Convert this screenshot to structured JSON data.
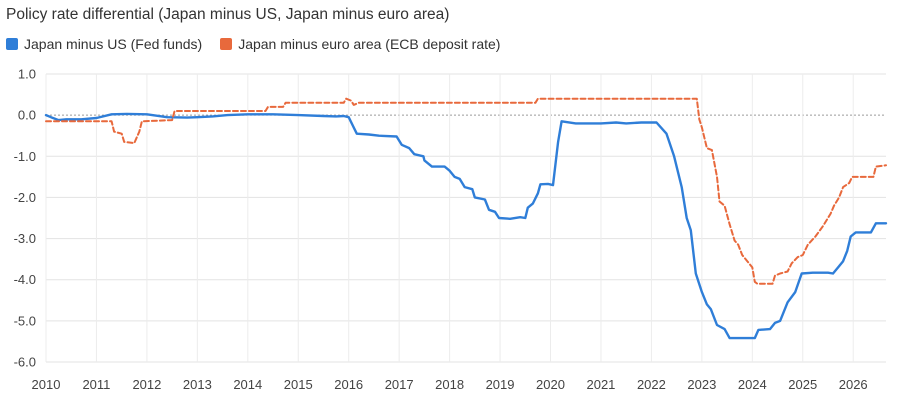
{
  "chart_data": {
    "type": "line",
    "title": "Policy rate differential (Japan minus US, Japan minus euro area)",
    "xlabel": "",
    "ylabel": "",
    "xlim": [
      2010,
      2026.65
    ],
    "ylim": [
      -6,
      1
    ],
    "x_ticks": [
      "2010",
      "2011",
      "2012",
      "2013",
      "2014",
      "2015",
      "2016",
      "2017",
      "2018",
      "2019",
      "2020",
      "2021",
      "2022",
      "2023",
      "2024",
      "2025",
      "2026"
    ],
    "y_ticks": [
      "1.0",
      "0.0",
      "-1.0",
      "-2.0",
      "-3.0",
      "-4.0",
      "-5.0",
      "-6.0"
    ],
    "grid": true,
    "legend_position": "top-left",
    "series": [
      {
        "name": "Japan minus US (Fed funds)",
        "color": "#2f7ed8",
        "style": "solid",
        "points": [
          [
            2010.0,
            0.0
          ],
          [
            2010.1,
            -0.05
          ],
          [
            2010.25,
            -0.12
          ],
          [
            2010.4,
            -0.1
          ],
          [
            2010.7,
            -0.1
          ],
          [
            2011.0,
            -0.07
          ],
          [
            2011.3,
            0.02
          ],
          [
            2011.6,
            0.03
          ],
          [
            2012.0,
            0.02
          ],
          [
            2012.4,
            -0.05
          ],
          [
            2012.8,
            -0.06
          ],
          [
            2013.0,
            -0.05
          ],
          [
            2013.3,
            -0.03
          ],
          [
            2013.6,
            0.0
          ],
          [
            2014.0,
            0.02
          ],
          [
            2014.5,
            0.02
          ],
          [
            2015.0,
            0.0
          ],
          [
            2015.5,
            -0.02
          ],
          [
            2015.75,
            -0.03
          ],
          [
            2015.9,
            -0.02
          ],
          [
            2016.0,
            -0.05
          ],
          [
            2016.08,
            -0.25
          ],
          [
            2016.16,
            -0.45
          ],
          [
            2016.4,
            -0.47
          ],
          [
            2016.6,
            -0.5
          ],
          [
            2016.95,
            -0.52
          ],
          [
            2017.05,
            -0.72
          ],
          [
            2017.2,
            -0.8
          ],
          [
            2017.3,
            -0.95
          ],
          [
            2017.48,
            -1.0
          ],
          [
            2017.5,
            -1.1
          ],
          [
            2017.65,
            -1.25
          ],
          [
            2017.9,
            -1.25
          ],
          [
            2018.0,
            -1.35
          ],
          [
            2018.1,
            -1.5
          ],
          [
            2018.2,
            -1.55
          ],
          [
            2018.3,
            -1.75
          ],
          [
            2018.45,
            -1.8
          ],
          [
            2018.5,
            -2.0
          ],
          [
            2018.7,
            -2.05
          ],
          [
            2018.78,
            -2.3
          ],
          [
            2018.9,
            -2.35
          ],
          [
            2018.98,
            -2.5
          ],
          [
            2019.2,
            -2.52
          ],
          [
            2019.4,
            -2.48
          ],
          [
            2019.5,
            -2.5
          ],
          [
            2019.55,
            -2.25
          ],
          [
            2019.65,
            -2.15
          ],
          [
            2019.75,
            -1.9
          ],
          [
            2019.8,
            -1.68
          ],
          [
            2019.95,
            -1.67
          ],
          [
            2020.05,
            -1.7
          ],
          [
            2020.15,
            -0.65
          ],
          [
            2020.22,
            -0.15
          ],
          [
            2020.5,
            -0.2
          ],
          [
            2021.0,
            -0.2
          ],
          [
            2021.3,
            -0.18
          ],
          [
            2021.5,
            -0.2
          ],
          [
            2021.8,
            -0.18
          ],
          [
            2022.1,
            -0.18
          ],
          [
            2022.3,
            -0.45
          ],
          [
            2022.45,
            -1.0
          ],
          [
            2022.6,
            -1.75
          ],
          [
            2022.7,
            -2.5
          ],
          [
            2022.78,
            -2.8
          ],
          [
            2022.88,
            -3.85
          ],
          [
            2023.0,
            -4.3
          ],
          [
            2023.1,
            -4.6
          ],
          [
            2023.18,
            -4.72
          ],
          [
            2023.3,
            -5.1
          ],
          [
            2023.45,
            -5.2
          ],
          [
            2023.55,
            -5.42
          ],
          [
            2023.8,
            -5.42
          ],
          [
            2024.05,
            -5.42
          ],
          [
            2024.12,
            -5.22
          ],
          [
            2024.35,
            -5.2
          ],
          [
            2024.45,
            -5.05
          ],
          [
            2024.55,
            -5.0
          ],
          [
            2024.7,
            -4.55
          ],
          [
            2024.85,
            -4.3
          ],
          [
            2024.98,
            -3.85
          ],
          [
            2025.2,
            -3.83
          ],
          [
            2025.5,
            -3.83
          ],
          [
            2025.6,
            -3.85
          ],
          [
            2025.7,
            -3.7
          ],
          [
            2025.8,
            -3.55
          ],
          [
            2025.88,
            -3.3
          ],
          [
            2025.95,
            -2.95
          ],
          [
            2026.05,
            -2.85
          ],
          [
            2026.35,
            -2.85
          ],
          [
            2026.45,
            -2.63
          ],
          [
            2026.65,
            -2.63
          ]
        ]
      },
      {
        "name": "Japan minus euro area (ECB deposit rate)",
        "color": "#e8693c",
        "style": "dashed",
        "points": [
          [
            2010.0,
            -0.15
          ],
          [
            2011.3,
            -0.15
          ],
          [
            2011.35,
            -0.4
          ],
          [
            2011.5,
            -0.45
          ],
          [
            2011.55,
            -0.65
          ],
          [
            2011.75,
            -0.68
          ],
          [
            2011.85,
            -0.4
          ],
          [
            2011.9,
            -0.15
          ],
          [
            2012.5,
            -0.12
          ],
          [
            2012.55,
            0.1
          ],
          [
            2013.0,
            0.1
          ],
          [
            2013.5,
            0.1
          ],
          [
            2014.35,
            0.1
          ],
          [
            2014.4,
            0.2
          ],
          [
            2014.7,
            0.2
          ],
          [
            2014.75,
            0.3
          ],
          [
            2015.9,
            0.3
          ],
          [
            2015.95,
            0.4
          ],
          [
            2016.05,
            0.35
          ],
          [
            2016.1,
            0.25
          ],
          [
            2016.2,
            0.3
          ],
          [
            2016.5,
            0.3
          ],
          [
            2018.0,
            0.3
          ],
          [
            2019.0,
            0.3
          ],
          [
            2019.7,
            0.3
          ],
          [
            2019.75,
            0.4
          ],
          [
            2022.5,
            0.4
          ],
          [
            2022.9,
            0.4
          ],
          [
            2022.95,
            -0.1
          ],
          [
            2023.0,
            -0.3
          ],
          [
            2023.1,
            -0.8
          ],
          [
            2023.2,
            -0.85
          ],
          [
            2023.3,
            -1.5
          ],
          [
            2023.35,
            -2.1
          ],
          [
            2023.45,
            -2.2
          ],
          [
            2023.55,
            -2.65
          ],
          [
            2023.65,
            -3.05
          ],
          [
            2023.72,
            -3.15
          ],
          [
            2023.8,
            -3.4
          ],
          [
            2023.9,
            -3.55
          ],
          [
            2024.0,
            -3.7
          ],
          [
            2024.05,
            -4.05
          ],
          [
            2024.1,
            -4.1
          ],
          [
            2024.4,
            -4.1
          ],
          [
            2024.45,
            -3.9
          ],
          [
            2024.55,
            -3.85
          ],
          [
            2024.7,
            -3.8
          ],
          [
            2024.78,
            -3.6
          ],
          [
            2024.9,
            -3.45
          ],
          [
            2025.0,
            -3.4
          ],
          [
            2025.1,
            -3.15
          ],
          [
            2025.25,
            -2.95
          ],
          [
            2025.4,
            -2.7
          ],
          [
            2025.55,
            -2.4
          ],
          [
            2025.62,
            -2.2
          ],
          [
            2025.72,
            -2.0
          ],
          [
            2025.8,
            -1.75
          ],
          [
            2025.92,
            -1.65
          ],
          [
            2025.98,
            -1.5
          ],
          [
            2026.4,
            -1.5
          ],
          [
            2026.45,
            -1.25
          ],
          [
            2026.65,
            -1.22
          ]
        ]
      }
    ]
  }
}
